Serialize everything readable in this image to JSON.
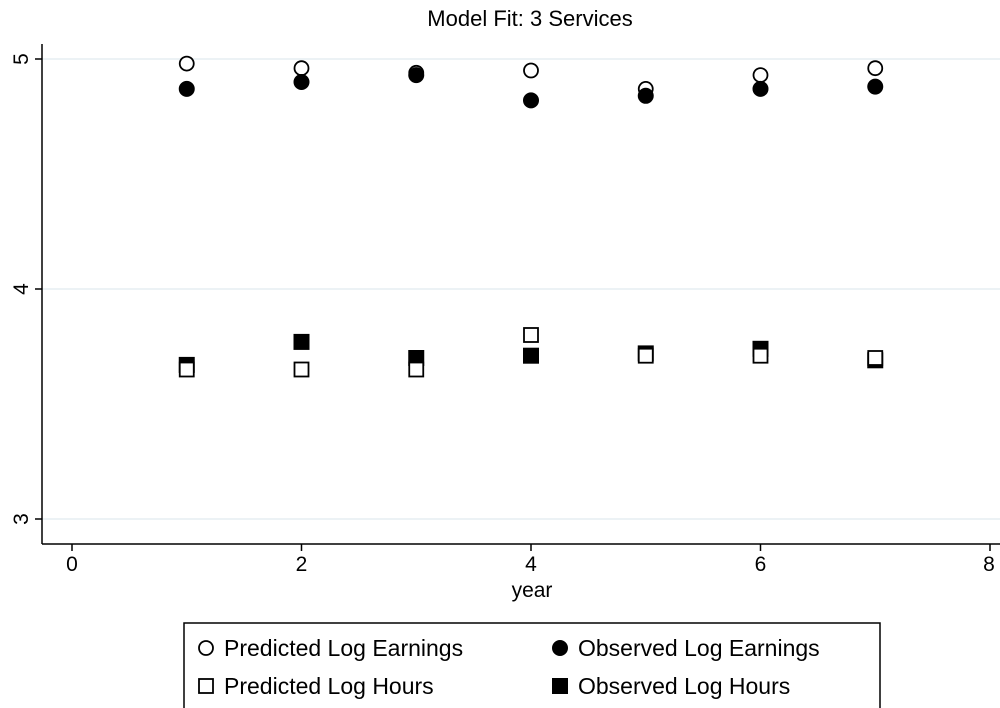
{
  "chart_data": {
    "type": "scatter",
    "title": "Model Fit: 3 Services",
    "xlabel": "year",
    "ylabel": "",
    "xlim": [
      0,
      8
    ],
    "ylim": [
      3,
      5
    ],
    "xticks": [
      0,
      2,
      4,
      6,
      8
    ],
    "yticks": [
      3,
      4,
      5
    ],
    "x_tick_labels": [
      "0",
      "2",
      "4",
      "6",
      "8"
    ],
    "y_tick_labels": [
      "3",
      "4",
      "5"
    ],
    "grid": "horizontal",
    "legend_position": "bottom",
    "x": [
      1,
      2,
      3,
      4,
      5,
      6,
      7
    ],
    "series": [
      {
        "name": "Predicted Log Earnings",
        "marker": "circle-hollow",
        "values": [
          4.98,
          4.96,
          4.94,
          4.95,
          4.87,
          4.93,
          4.96
        ]
      },
      {
        "name": "Observed Log Earnings",
        "marker": "circle-filled",
        "values": [
          4.87,
          4.9,
          4.93,
          4.82,
          4.84,
          4.87,
          4.88
        ]
      },
      {
        "name": "Predicted Log Hours",
        "marker": "square-hollow",
        "values": [
          3.65,
          3.65,
          3.65,
          3.8,
          3.71,
          3.71,
          3.7
        ]
      },
      {
        "name": "Observed Log Hours",
        "marker": "square-filled",
        "values": [
          3.67,
          3.77,
          3.7,
          3.71,
          3.72,
          3.74,
          3.69
        ]
      }
    ],
    "colors": {
      "marker": "#000000",
      "grid": "#e6eef2",
      "axis": "#000000",
      "background": "#ffffff"
    }
  }
}
